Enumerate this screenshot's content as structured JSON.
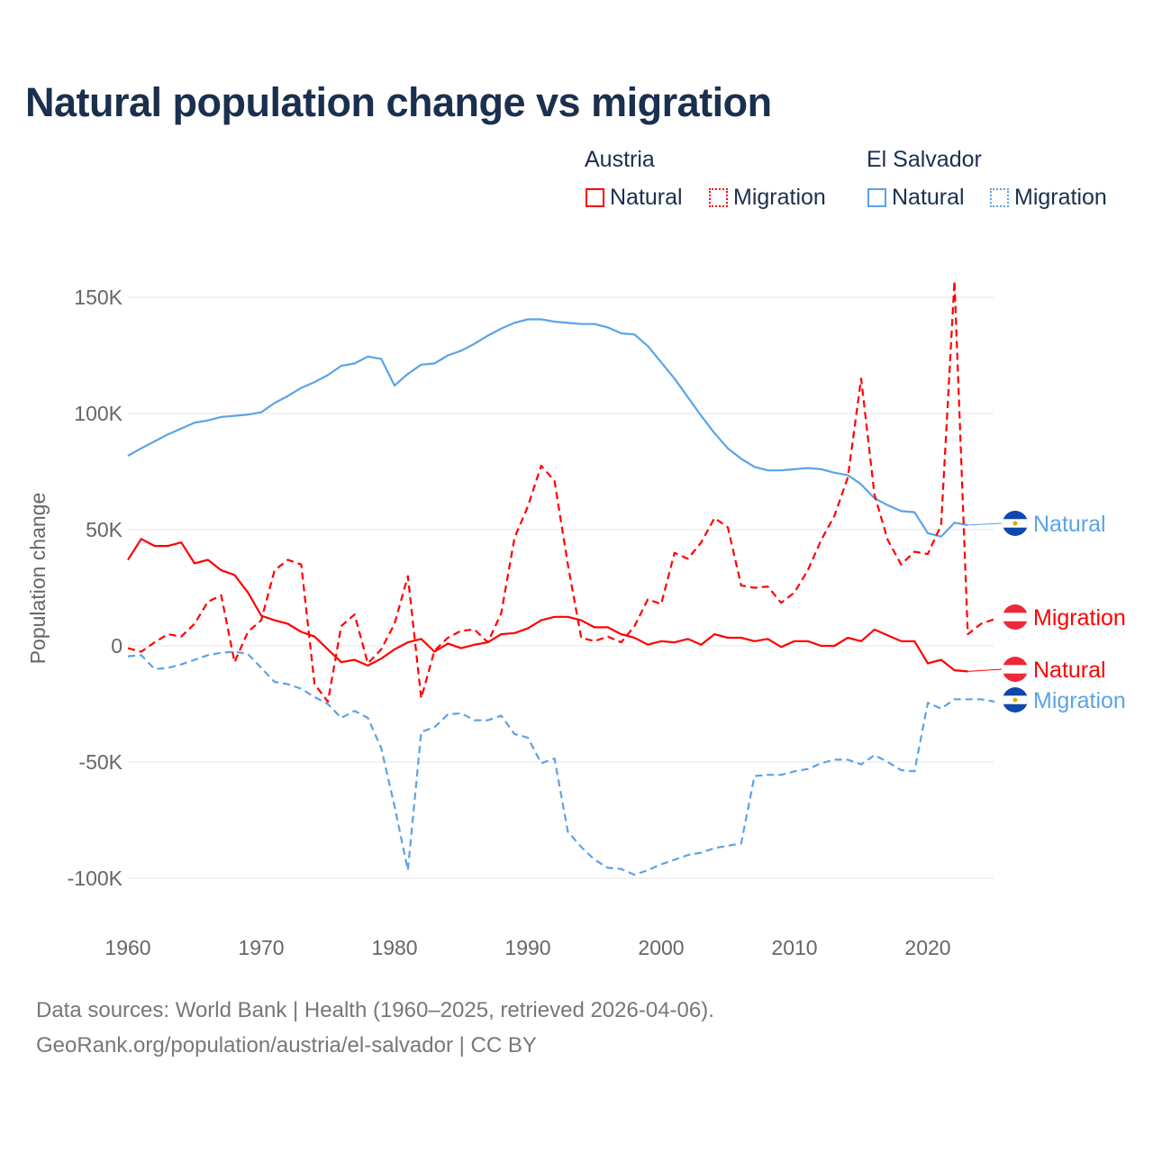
{
  "title": "Natural population change vs migration",
  "legend": {
    "groups": [
      {
        "name": "Austria",
        "color": "#ff0000",
        "items": [
          "Natural",
          "Migration"
        ]
      },
      {
        "name": "El Salvador",
        "color": "#5ba3e8",
        "items": [
          "Natural",
          "Migration"
        ]
      }
    ]
  },
  "footer": {
    "line1": "Data sources: World Bank | Health (1960–2025, retrieved 2026-04-06).",
    "line2": "GeoRank.org/population/austria/el-salvador | CC BY"
  },
  "chart_data": {
    "type": "line",
    "title": "Natural population change vs migration",
    "xlabel": "",
    "ylabel": "Population change",
    "xlim": [
      1960,
      2025
    ],
    "ylim": [
      -110000,
      160000
    ],
    "xticks": [
      1960,
      1970,
      1980,
      1990,
      2000,
      2010,
      2020
    ],
    "yticks": [
      -100000,
      -50000,
      0,
      50000,
      100000,
      150000
    ],
    "ytick_labels": [
      "-100K",
      "-50K",
      "0",
      "50K",
      "100K",
      "150K"
    ],
    "grid": true,
    "legend_placement": "top-right",
    "x_start": 1960,
    "series": [
      {
        "name": "El Salvador Natural",
        "country": "El Salvador",
        "kind": "Natural",
        "color": "#5ba3e8",
        "dashed": false,
        "end_label": "Natural",
        "values": [
          81800,
          85000,
          88000,
          91000,
          93500,
          96000,
          97000,
          98500,
          99000,
          99500,
          100500,
          104500,
          107500,
          111000,
          113500,
          116500,
          120500,
          121500,
          124500,
          123500,
          112000,
          117000,
          121000,
          121500,
          125000,
          127000,
          130000,
          133500,
          136500,
          139000,
          140500,
          140500,
          139500,
          139000,
          138500,
          138500,
          137000,
          134500,
          134000,
          129000,
          122000,
          115000,
          107000,
          99000,
          91500,
          85000,
          80500,
          77000,
          75500,
          75500,
          76000,
          76500,
          76000,
          74500,
          73500,
          69500,
          63500,
          60500,
          58000,
          57500,
          48500,
          47000,
          53000,
          52000
        ]
      },
      {
        "name": "Austria Migration",
        "country": "Austria",
        "kind": "Migration",
        "color": "#ff0000",
        "dashed": true,
        "end_label": "Migration",
        "values": [
          -1000,
          -2500,
          1500,
          5000,
          4000,
          9500,
          19000,
          21700,
          -7000,
          6000,
          11000,
          32500,
          37000,
          35000,
          -16500,
          -24000,
          8500,
          13500,
          -7500,
          -1500,
          9500,
          30000,
          -22500,
          -2000,
          3500,
          6500,
          7000,
          1500,
          14000,
          46500,
          60000,
          77500,
          71000,
          35000,
          3500,
          2000,
          4000,
          1500,
          8500,
          20000,
          18000,
          40000,
          37500,
          44500,
          55000,
          51000,
          26000,
          25000,
          25500,
          18500,
          23000,
          32500,
          45500,
          56000,
          72500,
          115000,
          65000,
          45500,
          35000,
          40500,
          39500,
          52000,
          157000,
          5000,
          9500,
          11500
        ]
      },
      {
        "name": "Austria Natural",
        "country": "Austria",
        "kind": "Natural",
        "color": "#ff0000",
        "dashed": false,
        "end_label": "Natural",
        "values": [
          37000,
          46000,
          43000,
          43000,
          44500,
          35500,
          37000,
          32500,
          30500,
          23000,
          13000,
          11000,
          9500,
          6000,
          4000,
          -1500,
          -7000,
          -6000,
          -8500,
          -5500,
          -1500,
          1500,
          3000,
          -2500,
          1000,
          -1000,
          500,
          1500,
          5000,
          5500,
          7500,
          11000,
          12500,
          12500,
          11000,
          8000,
          8000,
          5000,
          3500,
          500,
          2000,
          1500,
          3000,
          500,
          5000,
          3500,
          3500,
          2000,
          3000,
          -500,
          2000,
          2000,
          0,
          0,
          3500,
          2000,
          7000,
          4500,
          2000,
          2000,
          -7500,
          -6000,
          -10500,
          -11000
        ]
      },
      {
        "name": "El Salvador Migration",
        "country": "El Salvador",
        "kind": "Migration",
        "color": "#5ba3e8",
        "dashed": true,
        "end_label": "Migration",
        "values": [
          -4500,
          -4000,
          -10000,
          -9500,
          -8000,
          -6000,
          -4000,
          -3000,
          -2500,
          -3500,
          -9500,
          -15500,
          -16500,
          -18500,
          -22000,
          -25000,
          -31000,
          -28000,
          -31000,
          -44000,
          -69000,
          -96500,
          -37000,
          -35000,
          -29500,
          -29000,
          -32000,
          -32000,
          -30000,
          -38000,
          -39500,
          -50500,
          -48500,
          -80000,
          -86500,
          -92000,
          -95500,
          -96000,
          -98500,
          -96500,
          -94000,
          -92000,
          -90000,
          -89000,
          -87000,
          -86000,
          -85000,
          -56000,
          -55500,
          -55500,
          -54000,
          -53000,
          -50500,
          -49000,
          -49000,
          -51000,
          -47000,
          -50000,
          -53500,
          -54000,
          -24500,
          -27000,
          -23000,
          -23000,
          -23000,
          -24000
        ]
      }
    ]
  }
}
